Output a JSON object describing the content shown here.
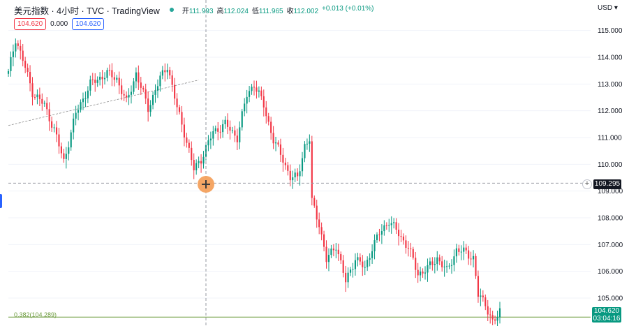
{
  "header": {
    "symbol_title": "美元指数 · 4小时 · TVC · TradingView",
    "ohlc": {
      "open_label": "开",
      "open": "111.993",
      "high_label": "高",
      "high": "112.024",
      "low_label": "低",
      "low": "111.965",
      "close_label": "收",
      "close": "112.002",
      "change": "+0.013 (+0.01%)"
    },
    "currency": "USD",
    "bid": "104.620",
    "spread": "0.000",
    "ask": "104.620"
  },
  "annotations": {
    "fib_label": "0.382(104.289)",
    "crosshair_price": "109.295",
    "last_price": "104.620",
    "countdown": "03:04:16"
  },
  "colors": {
    "up": "#089981",
    "down": "#f23645",
    "grid": "#f0f3fa",
    "fib": "#6b9a3c"
  },
  "chart_data": {
    "type": "candlestick",
    "interval": "4h",
    "ylim": [
      103.5,
      115.5
    ],
    "y_ticks": [
      "115.000",
      "114.000",
      "113.000",
      "112.000",
      "111.000",
      "110.000",
      "109.000",
      "108.000",
      "107.000",
      "106.000",
      "105.000"
    ],
    "crosshair_y": 109.295,
    "fib_level": 104.289,
    "last": 104.62,
    "trendline": {
      "from": [
        0,
        111.45
      ],
      "to": [
        79,
        113.15
      ]
    },
    "waypoints": [
      [
        0,
        113.4
      ],
      [
        3,
        114.7
      ],
      [
        6,
        113.9
      ],
      [
        10,
        112.7
      ],
      [
        15,
        112.2
      ],
      [
        19,
        111.3
      ],
      [
        23,
        110.1
      ],
      [
        28,
        111.9
      ],
      [
        34,
        113.0
      ],
      [
        41,
        113.4
      ],
      [
        45,
        113.2
      ],
      [
        49,
        112.3
      ],
      [
        53,
        113.4
      ],
      [
        58,
        112.1
      ],
      [
        63,
        113.2
      ],
      [
        66,
        113.7
      ],
      [
        70,
        112.1
      ],
      [
        73,
        111.2
      ],
      [
        77,
        109.8
      ],
      [
        80,
        110.2
      ],
      [
        85,
        111.2
      ],
      [
        90,
        111.5
      ],
      [
        95,
        111.0
      ],
      [
        99,
        112.6
      ],
      [
        102,
        113.0
      ],
      [
        106,
        112.2
      ],
      [
        110,
        110.9
      ],
      [
        114,
        110.2
      ],
      [
        117,
        109.5
      ],
      [
        120,
        109.5
      ],
      [
        123,
        110.7
      ],
      [
        125,
        110.9
      ],
      [
        126,
        108.6
      ],
      [
        129,
        107.8
      ],
      [
        132,
        106.4
      ],
      [
        136,
        107.0
      ],
      [
        140,
        105.6
      ],
      [
        144,
        106.5
      ],
      [
        148,
        106.1
      ],
      [
        151,
        106.9
      ],
      [
        154,
        107.4
      ],
      [
        158,
        107.9
      ],
      [
        162,
        107.4
      ],
      [
        166,
        106.9
      ],
      [
        170,
        105.9
      ],
      [
        174,
        106.1
      ],
      [
        178,
        106.5
      ],
      [
        182,
        106.0
      ],
      [
        186,
        106.8
      ],
      [
        190,
        106.7
      ],
      [
        193,
        106.5
      ],
      [
        195,
        105.1
      ],
      [
        198,
        104.8
      ],
      [
        201,
        104.1
      ],
      [
        204,
        104.35
      ]
    ]
  }
}
